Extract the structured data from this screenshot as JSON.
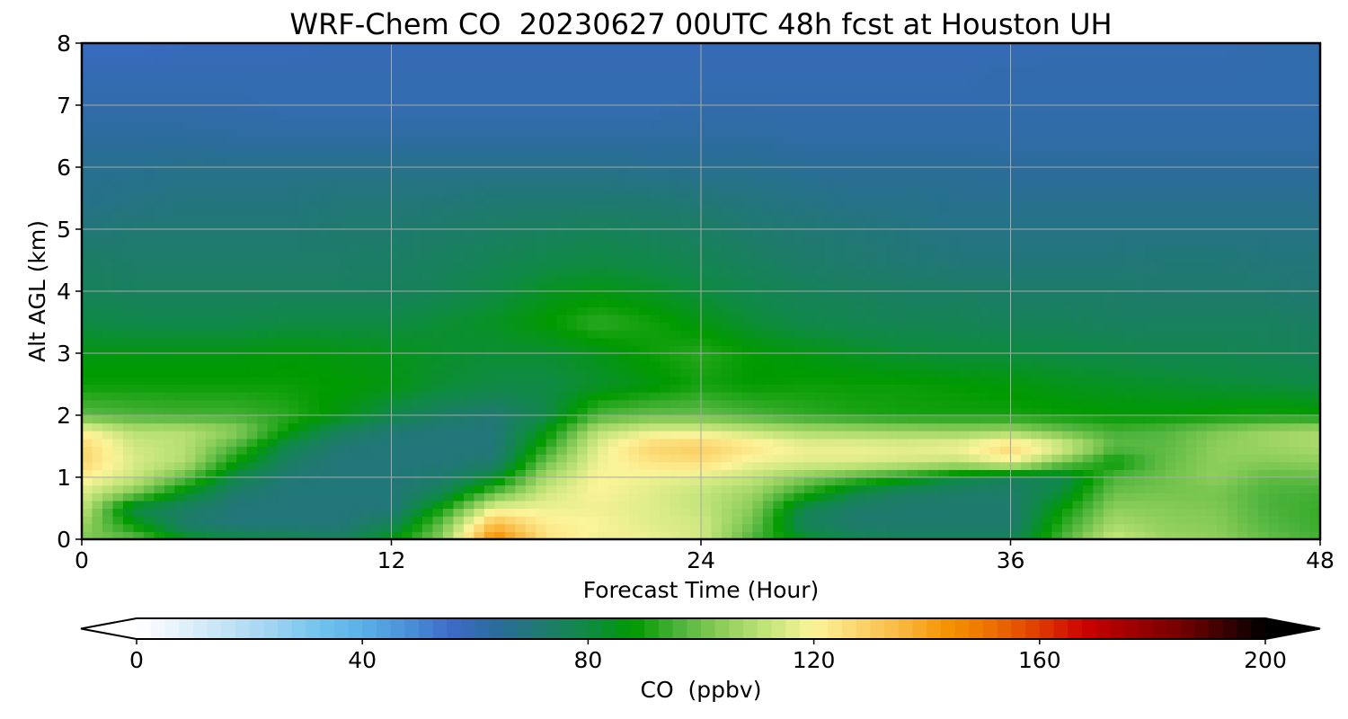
{
  "chart_data": {
    "type": "heatmap",
    "title": "WRF-Chem CO  20230627 00UTC 48h fcst at Houston UH",
    "xlabel": "Forecast Time (Hour)",
    "ylabel": "Alt AGL (km)",
    "xlim": [
      0,
      48
    ],
    "ylim": [
      0,
      8
    ],
    "x_ticks": [
      0,
      12,
      24,
      36,
      48
    ],
    "y_ticks": [
      0,
      1,
      2,
      3,
      4,
      5,
      6,
      7,
      8
    ],
    "grid": true,
    "colorbar": {
      "label": "CO  (ppbv)",
      "range": [
        0,
        200
      ],
      "ticks": [
        0,
        40,
        80,
        120,
        160,
        200
      ],
      "extend": "both",
      "colors": [
        "#ffffff",
        "#e3f1fb",
        "#c1e3f6",
        "#9fd4f1",
        "#74c3ee",
        "#5ab0e6",
        "#4a90d6",
        "#3c6bc6",
        "#2b6c9c",
        "#1f7a6e",
        "#0f8a45",
        "#009a00",
        "#4cb33a",
        "#8fcf5c",
        "#c4e57a",
        "#fcf49a",
        "#fbd56d",
        "#f9b53c",
        "#f59100",
        "#ec6d00",
        "#df3a00",
        "#cc0000",
        "#a00000",
        "#7a0000",
        "#400000",
        "#000000"
      ]
    },
    "x_hours": [
      0,
      2,
      4,
      6,
      8,
      10,
      12,
      14,
      16,
      18,
      20,
      22,
      24,
      26,
      28,
      30,
      32,
      34,
      36,
      38,
      40,
      42,
      44,
      46,
      48
    ],
    "y_km": [
      0,
      0.25,
      0.5,
      0.75,
      1,
      1.25,
      1.5,
      1.75,
      2,
      2.5,
      3,
      3.5,
      4,
      4.5,
      5,
      5.5,
      6,
      6.5,
      7,
      7.5,
      8
    ],
    "values_ppbv": [
      [
        102,
        99,
        85,
        80,
        78,
        75,
        86,
        104,
        147,
        125,
        118,
        118,
        114,
        96,
        84,
        78,
        76,
        76,
        76,
        96,
        113,
        106,
        104,
        99,
        95
      ],
      [
        106,
        88,
        73,
        70,
        70,
        70,
        76,
        100,
        135,
        122,
        120,
        116,
        114,
        100,
        76,
        72,
        72,
        72,
        72,
        92,
        108,
        104,
        103,
        97,
        94
      ],
      [
        112,
        79,
        74,
        70,
        70,
        70,
        70,
        90,
        118,
        118,
        118,
        116,
        112,
        103,
        78,
        73,
        72,
        72,
        72,
        88,
        104,
        103,
        102,
        96,
        94
      ],
      [
        115,
        102,
        84,
        72,
        70,
        70,
        70,
        78,
        98,
        114,
        120,
        116,
        112,
        106,
        92,
        79,
        74,
        73,
        73,
        82,
        100,
        101,
        101,
        96,
        95
      ],
      [
        122,
        113,
        98,
        78,
        71,
        70,
        70,
        72,
        82,
        108,
        120,
        118,
        116,
        112,
        103,
        96,
        89,
        80,
        76,
        78,
        96,
        100,
        104,
        98,
        99
      ],
      [
        128,
        115,
        109,
        88,
        74,
        70,
        70,
        70,
        72,
        100,
        118,
        124,
        126,
        118,
        116,
        116,
        114,
        112,
        119,
        102,
        88,
        99,
        104,
        103,
        104
      ],
      [
        128,
        114,
        110,
        96,
        78,
        71,
        70,
        70,
        70,
        92,
        116,
        128,
        130,
        124,
        118,
        118,
        117,
        119,
        128,
        116,
        98,
        98,
        104,
        106,
        108
      ],
      [
        120,
        110,
        110,
        104,
        88,
        76,
        71,
        70,
        70,
        86,
        110,
        116,
        116,
        112,
        108,
        107,
        106,
        105,
        106,
        100,
        95,
        97,
        102,
        106,
        108
      ],
      [
        98,
        96,
        95,
        95,
        92,
        86,
        79,
        74,
        71,
        79,
        96,
        99,
        99,
        96,
        93,
        91,
        90,
        90,
        90,
        89,
        88,
        88,
        89,
        90,
        89
      ],
      [
        89,
        89,
        89,
        89,
        89,
        88,
        86,
        82,
        80,
        80,
        83,
        86,
        90,
        88,
        89,
        89,
        89,
        88,
        87,
        85,
        84,
        83,
        82,
        81,
        80
      ],
      [
        86,
        86,
        86,
        86,
        87,
        86,
        85,
        83,
        82,
        82,
        85,
        89,
        92,
        88,
        86,
        84,
        82,
        81,
        81,
        80,
        79,
        78,
        78,
        77,
        76
      ],
      [
        80,
        79,
        79,
        79,
        80,
        80,
        80,
        82,
        84,
        88,
        93,
        90,
        86,
        82,
        79,
        78,
        77,
        77,
        76,
        76,
        75,
        75,
        75,
        75,
        74
      ],
      [
        76,
        75,
        75,
        75,
        75,
        75,
        75,
        77,
        80,
        84,
        86,
        84,
        81,
        78,
        76,
        75,
        74,
        74,
        73,
        73,
        73,
        72,
        72,
        72,
        71
      ],
      [
        74,
        73,
        73,
        73,
        73,
        73,
        74,
        75,
        77,
        79,
        80,
        79,
        77,
        75,
        73,
        72,
        71,
        70,
        70,
        70,
        70,
        71,
        71,
        70,
        70
      ],
      [
        70,
        71,
        71,
        71,
        71,
        72,
        72,
        73,
        74,
        75,
        76,
        75,
        74,
        72,
        71,
        70,
        69,
        68,
        68,
        68,
        68,
        68,
        68,
        68,
        68
      ],
      [
        67,
        68,
        69,
        69,
        69,
        70,
        70,
        70,
        71,
        71,
        71,
        71,
        70,
        69,
        68,
        67,
        67,
        66,
        66,
        66,
        66,
        66,
        66,
        66,
        66
      ],
      [
        66,
        66,
        67,
        67,
        67,
        67,
        67,
        67,
        67,
        67,
        67,
        66,
        66,
        66,
        65,
        65,
        65,
        65,
        64,
        64,
        64,
        64,
        64,
        64,
        64
      ],
      [
        64,
        64,
        64,
        63,
        63,
        63,
        63,
        63,
        63,
        63,
        63,
        63,
        63,
        63,
        62,
        62,
        62,
        62,
        62,
        62,
        62,
        62,
        62,
        62,
        62
      ],
      [
        61,
        61,
        61,
        61,
        60,
        60,
        60,
        60,
        60,
        60,
        60,
        60,
        61,
        61,
        61,
        61,
        61,
        61,
        61,
        61,
        61,
        61,
        61,
        61,
        61
      ],
      [
        60,
        60,
        60,
        60,
        60,
        60,
        60,
        60,
        60,
        60,
        60,
        60,
        60,
        60,
        60,
        60,
        60,
        60,
        61,
        61,
        61,
        61,
        61,
        61,
        61
      ],
      [
        57,
        57,
        58,
        58,
        58,
        59,
        59,
        59,
        59,
        59,
        59,
        59,
        59,
        59,
        59,
        59,
        59,
        59,
        59,
        60,
        60,
        60,
        60,
        61,
        61
      ]
    ]
  }
}
